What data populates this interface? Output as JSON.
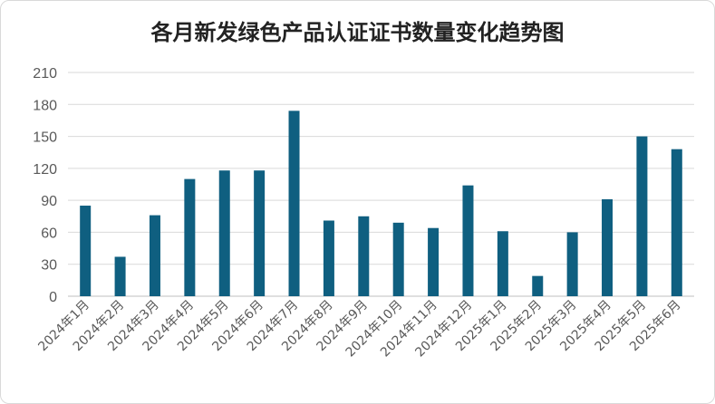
{
  "chart_data": {
    "type": "bar",
    "title": "各月新发绿色产品认证证书数量变化趋势图",
    "xlabel": "",
    "ylabel": "",
    "categories": [
      "2024年1月",
      "2024年2月",
      "2024年3月",
      "2024年4月",
      "2024年5月",
      "2024年6月",
      "2024年7月",
      "2024年8月",
      "2024年9月",
      "2024年10月",
      "2024年11月",
      "2024年12月",
      "2025年1月",
      "2025年2月",
      "2025年3月",
      "2025年4月",
      "2025年5月",
      "2025年6月"
    ],
    "values": [
      85,
      37,
      76,
      110,
      118,
      118,
      174,
      71,
      75,
      69,
      64,
      104,
      61,
      19,
      60,
      91,
      150,
      138
    ],
    "ylim": [
      0,
      210
    ],
    "yticks": [
      0,
      30,
      60,
      90,
      120,
      150,
      180,
      210
    ],
    "grid": true,
    "legend": "none",
    "bar_color": "#0f5f80",
    "grid_color": "#d9d9d9"
  }
}
